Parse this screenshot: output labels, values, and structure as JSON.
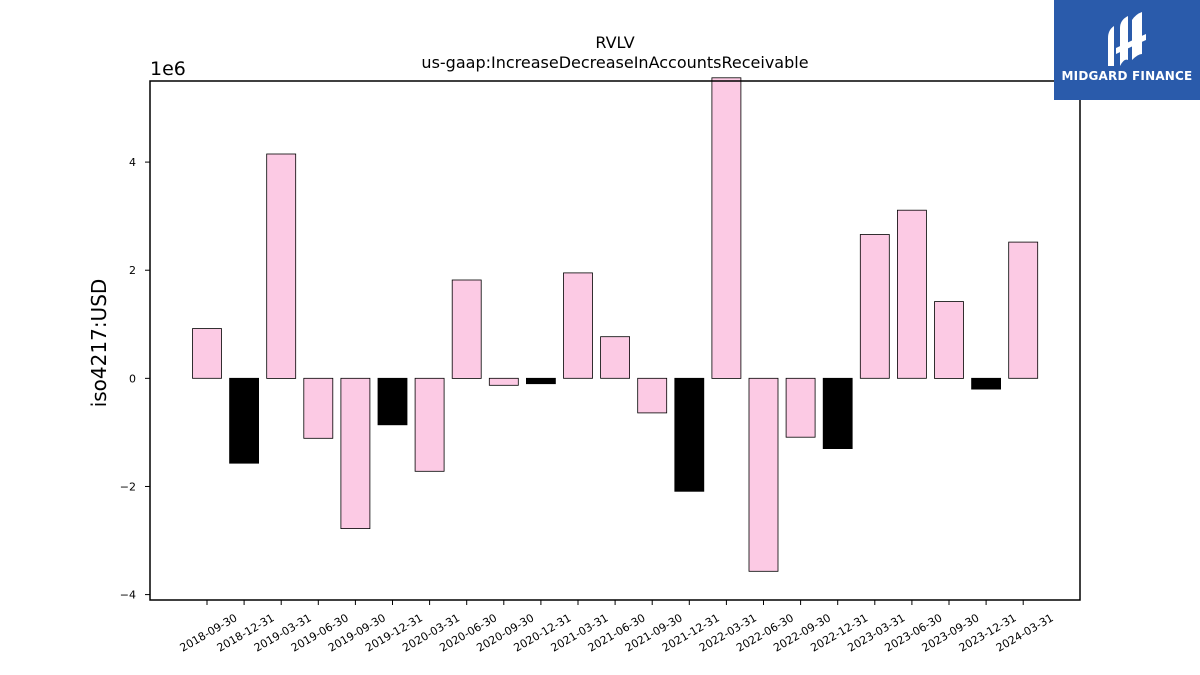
{
  "chart_data": {
    "type": "bar",
    "title": "RVLV",
    "subtitle": "us-gaap:IncreaseDecreaseInAccountsReceivable",
    "ylabel": "iso4217:USD",
    "xlabel": "",
    "y_offset_label": "1e6",
    "y_scale": 1000000,
    "ylim": [
      -4100000,
      5500000
    ],
    "yticks": [
      -4,
      -2,
      0,
      2,
      4
    ],
    "ytick_labels": [
      "−4",
      "−2",
      "0",
      "2",
      "4"
    ],
    "grid": false,
    "categories": [
      "2018-09-30",
      "2018-12-31",
      "2019-03-31",
      "2019-06-30",
      "2019-09-30",
      "2019-12-31",
      "2020-03-31",
      "2020-06-30",
      "2020-09-30",
      "2020-12-31",
      "2021-03-31",
      "2021-06-30",
      "2021-09-30",
      "2021-12-31",
      "2022-03-31",
      "2022-06-30",
      "2022-09-30",
      "2022-12-31",
      "2023-03-31",
      "2023-06-30",
      "2023-09-30",
      "2023-12-31",
      "2024-03-31"
    ],
    "values": [
      920000,
      -1570000,
      4150000,
      -1110000,
      -2780000,
      -860000,
      -1720000,
      1820000,
      -130000,
      -100000,
      1950000,
      770000,
      -640000,
      -2090000,
      5560000,
      -3570000,
      -1090000,
      -1300000,
      2660000,
      3110000,
      1420000,
      -200000,
      2520000
    ],
    "bar_colors": [
      "#fccae4",
      "#000000",
      "#fccae4",
      "#fccae4",
      "#fccae4",
      "#000000",
      "#fccae4",
      "#fccae4",
      "#fccae4",
      "#000000",
      "#fccae4",
      "#fccae4",
      "#fccae4",
      "#000000",
      "#fccae4",
      "#fccae4",
      "#fccae4",
      "#000000",
      "#fccae4",
      "#fccae4",
      "#fccae4",
      "#000000",
      "#fccae4"
    ]
  },
  "logo": {
    "text": "MIDGARD FINANCE",
    "background": "#2a5bab"
  }
}
